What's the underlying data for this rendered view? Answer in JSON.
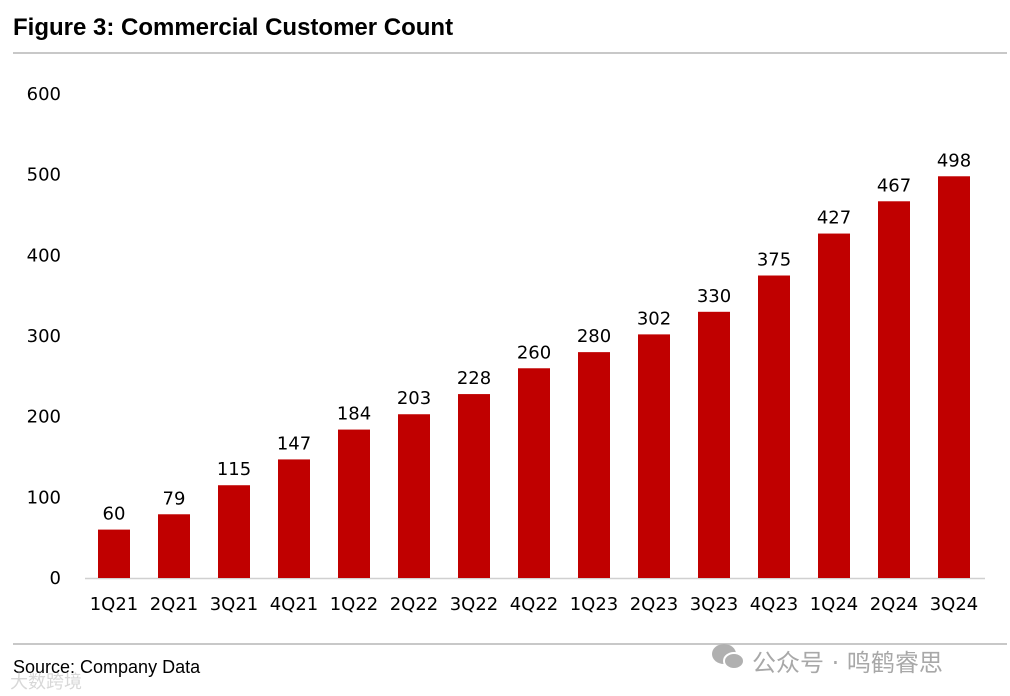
{
  "chart_data": {
    "type": "bar",
    "title": "Figure 3: Commercial Customer Count",
    "categories": [
      "1Q21",
      "2Q21",
      "3Q21",
      "4Q21",
      "1Q22",
      "2Q22",
      "3Q22",
      "4Q22",
      "1Q23",
      "2Q23",
      "3Q23",
      "4Q23",
      "1Q24",
      "2Q24",
      "3Q24"
    ],
    "values": [
      60,
      79,
      115,
      147,
      184,
      203,
      228,
      260,
      280,
      302,
      330,
      375,
      427,
      467,
      498
    ],
    "xlabel": "",
    "ylabel": "",
    "ylim": [
      0,
      600
    ],
    "yticks": [
      0,
      100,
      200,
      300,
      400,
      500,
      600
    ],
    "grid": false,
    "bar_color": "#c00000",
    "data_labels": true
  },
  "source": "Source: Company Data",
  "watermark": {
    "text": "公众号 · 鸣鹤睿思",
    "icon": "wechat-icon",
    "secondary": "大数跨境"
  }
}
